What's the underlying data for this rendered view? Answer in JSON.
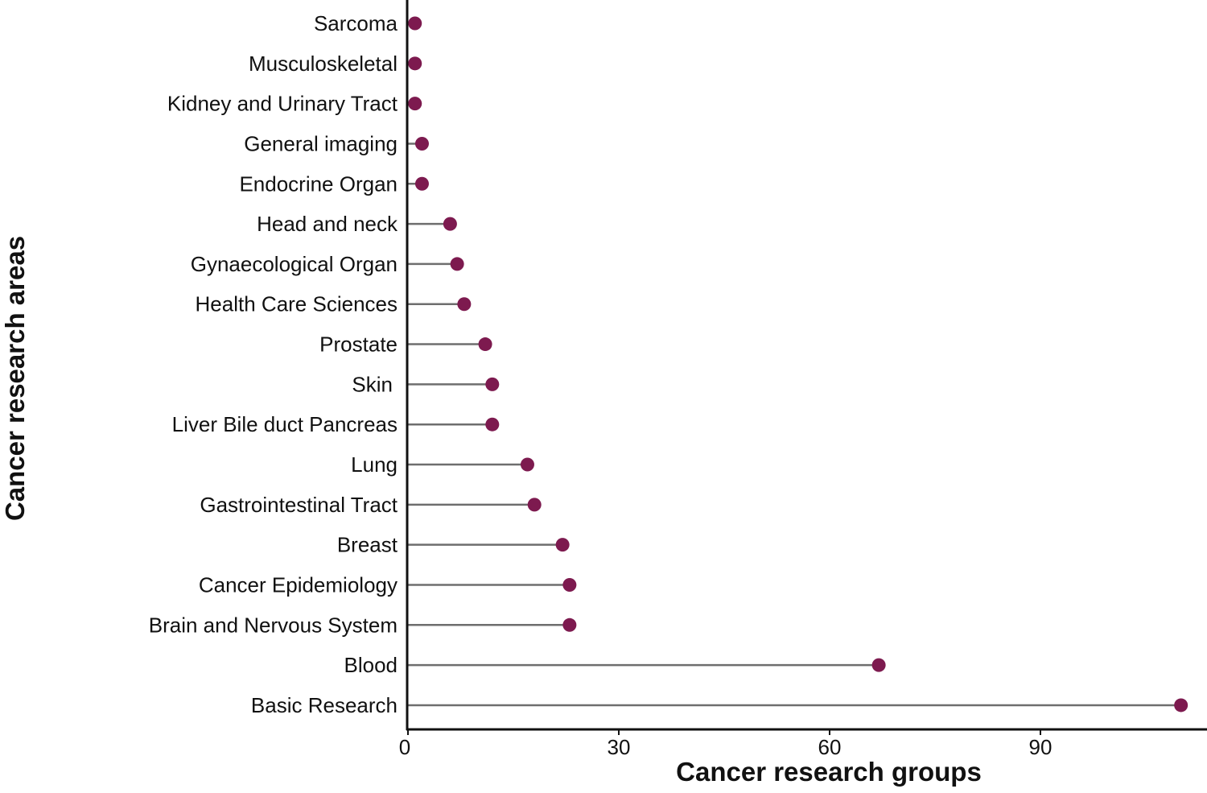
{
  "chart_data": {
    "type": "lollipop",
    "title": "",
    "xlabel": "Cancer research groups",
    "ylabel": "Cancer research areas",
    "xlim": [
      0,
      113
    ],
    "xticks": [
      0,
      30,
      60,
      90
    ],
    "grid": false,
    "legend": null,
    "categories": [
      "Sarcoma",
      "Musculoskeletal",
      "Kidney and Urinary Tract",
      "General imaging",
      "Endocrine Organ",
      "Head and neck",
      "Gynaecological Organ",
      "Health Care Sciences",
      "Prostate",
      "Skin",
      "Liver Bile duct Pancreas",
      "Lung",
      "Gastrointestinal Tract",
      "Breast",
      "Cancer Epidemiology",
      "Brain and Nervous System",
      "Blood",
      "Basic Research"
    ],
    "values": [
      1,
      1,
      1,
      2,
      2,
      6,
      7,
      8,
      11,
      12,
      12,
      17,
      18,
      22,
      23,
      23,
      67,
      110
    ]
  },
  "colors": {
    "dot": "#7d1a4f",
    "stem": "#6e6e6e",
    "axis": "#111111"
  }
}
